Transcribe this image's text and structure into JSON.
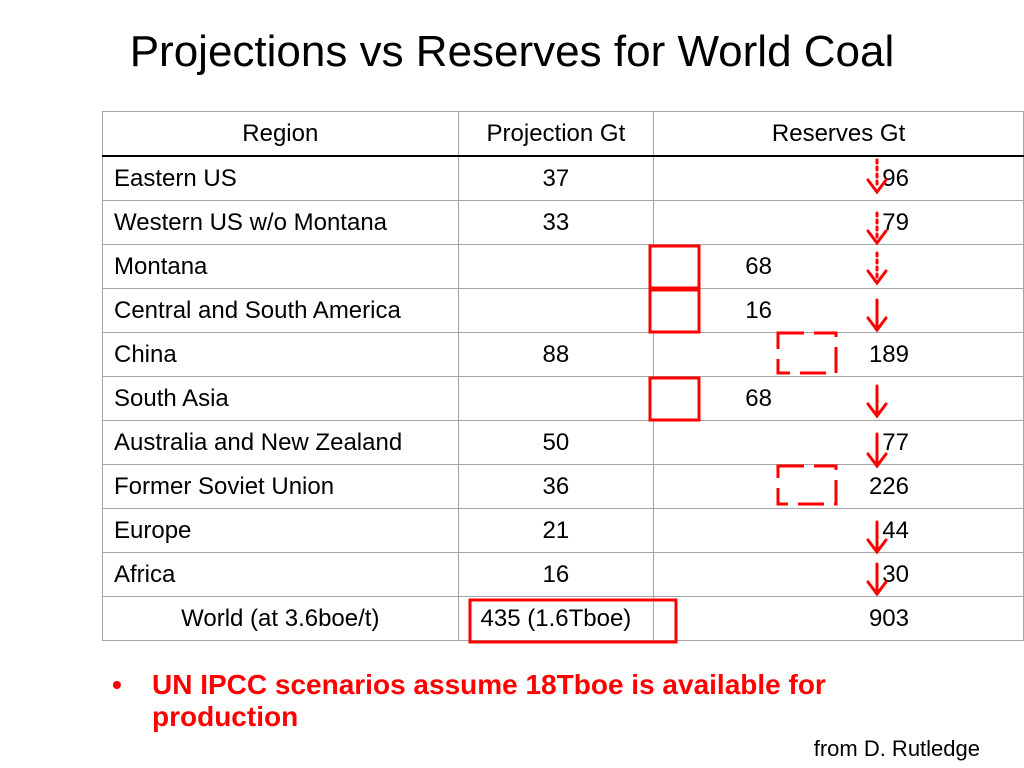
{
  "title": "Projections vs Reserves for World Coal",
  "table": {
    "headers": {
      "region": "Region",
      "projection": "Projection Gt",
      "reserves": "Reserves Gt"
    },
    "rows": [
      {
        "region": "Eastern US",
        "projection": "37",
        "reserves": "96"
      },
      {
        "region": "Western US w/o Montana",
        "projection": "33",
        "reserves": "79"
      },
      {
        "region": "Montana",
        "reserves": "68"
      },
      {
        "region": "Central and South America",
        "reserves": "16"
      },
      {
        "region": "China",
        "projection": "88",
        "reserves": "189"
      },
      {
        "region": "South Asia",
        "reserves": "68"
      },
      {
        "region": "Australia and New Zealand",
        "projection": "50",
        "reserves": "77"
      },
      {
        "region": "Former Soviet Union",
        "projection": "36",
        "reserves": "226"
      },
      {
        "region": "Europe",
        "projection": "21",
        "reserves": "44"
      },
      {
        "region": "Africa",
        "projection": "16",
        "reserves": "30"
      }
    ],
    "world": {
      "region": "World (at 3.6boe/t)",
      "projection": "435 (1.6Tboe)",
      "reserves": "903"
    }
  },
  "bullet": {
    "marker": "•",
    "text": "UN IPCC scenarios assume 18Tboe is available for production"
  },
  "credit": "from D. Rutledge",
  "colors": {
    "accent": "#ff0000",
    "grid": "#a6a6a6"
  }
}
